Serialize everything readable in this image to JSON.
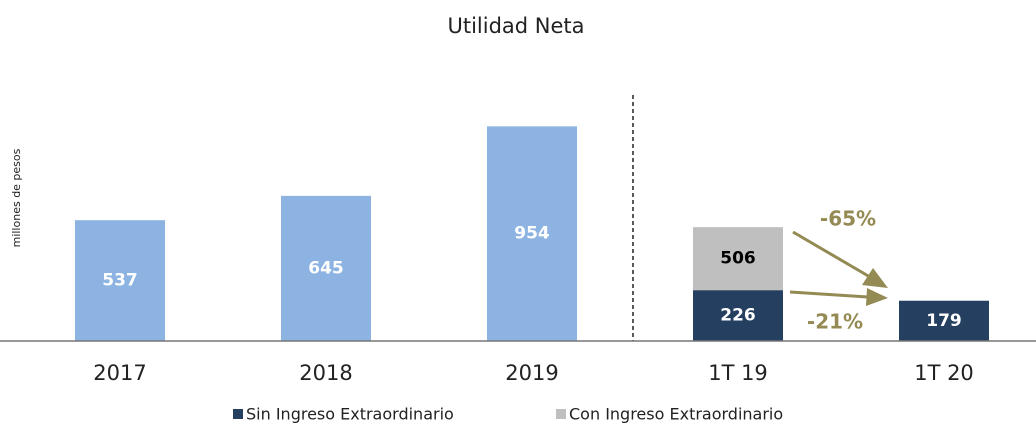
{
  "chart_data": {
    "type": "bar",
    "title": "Utilidad Neta",
    "y_label": "millones de pesos",
    "categories": [
      "2017",
      "2018",
      "2019",
      "1T 19",
      "1T 20"
    ],
    "values": [
      537,
      645,
      954,
      null,
      null
    ],
    "color": "#8DB3E2",
    "series": [
      {
        "name": "Sin Ingreso Extraordinario",
        "color": "#243F60",
        "values": [
          null,
          null,
          null,
          226,
          179
        ]
      },
      {
        "name": "Con Ingreso Extraordinario",
        "color": "#BFBFBF",
        "values": [
          null,
          null,
          null,
          280,
          null
        ]
      }
    ],
    "totals": [
      null,
      null,
      null,
      506,
      null
    ],
    "annotations": [
      "-65%",
      "-21%"
    ],
    "ylim": [
      0,
      1000
    ]
  }
}
